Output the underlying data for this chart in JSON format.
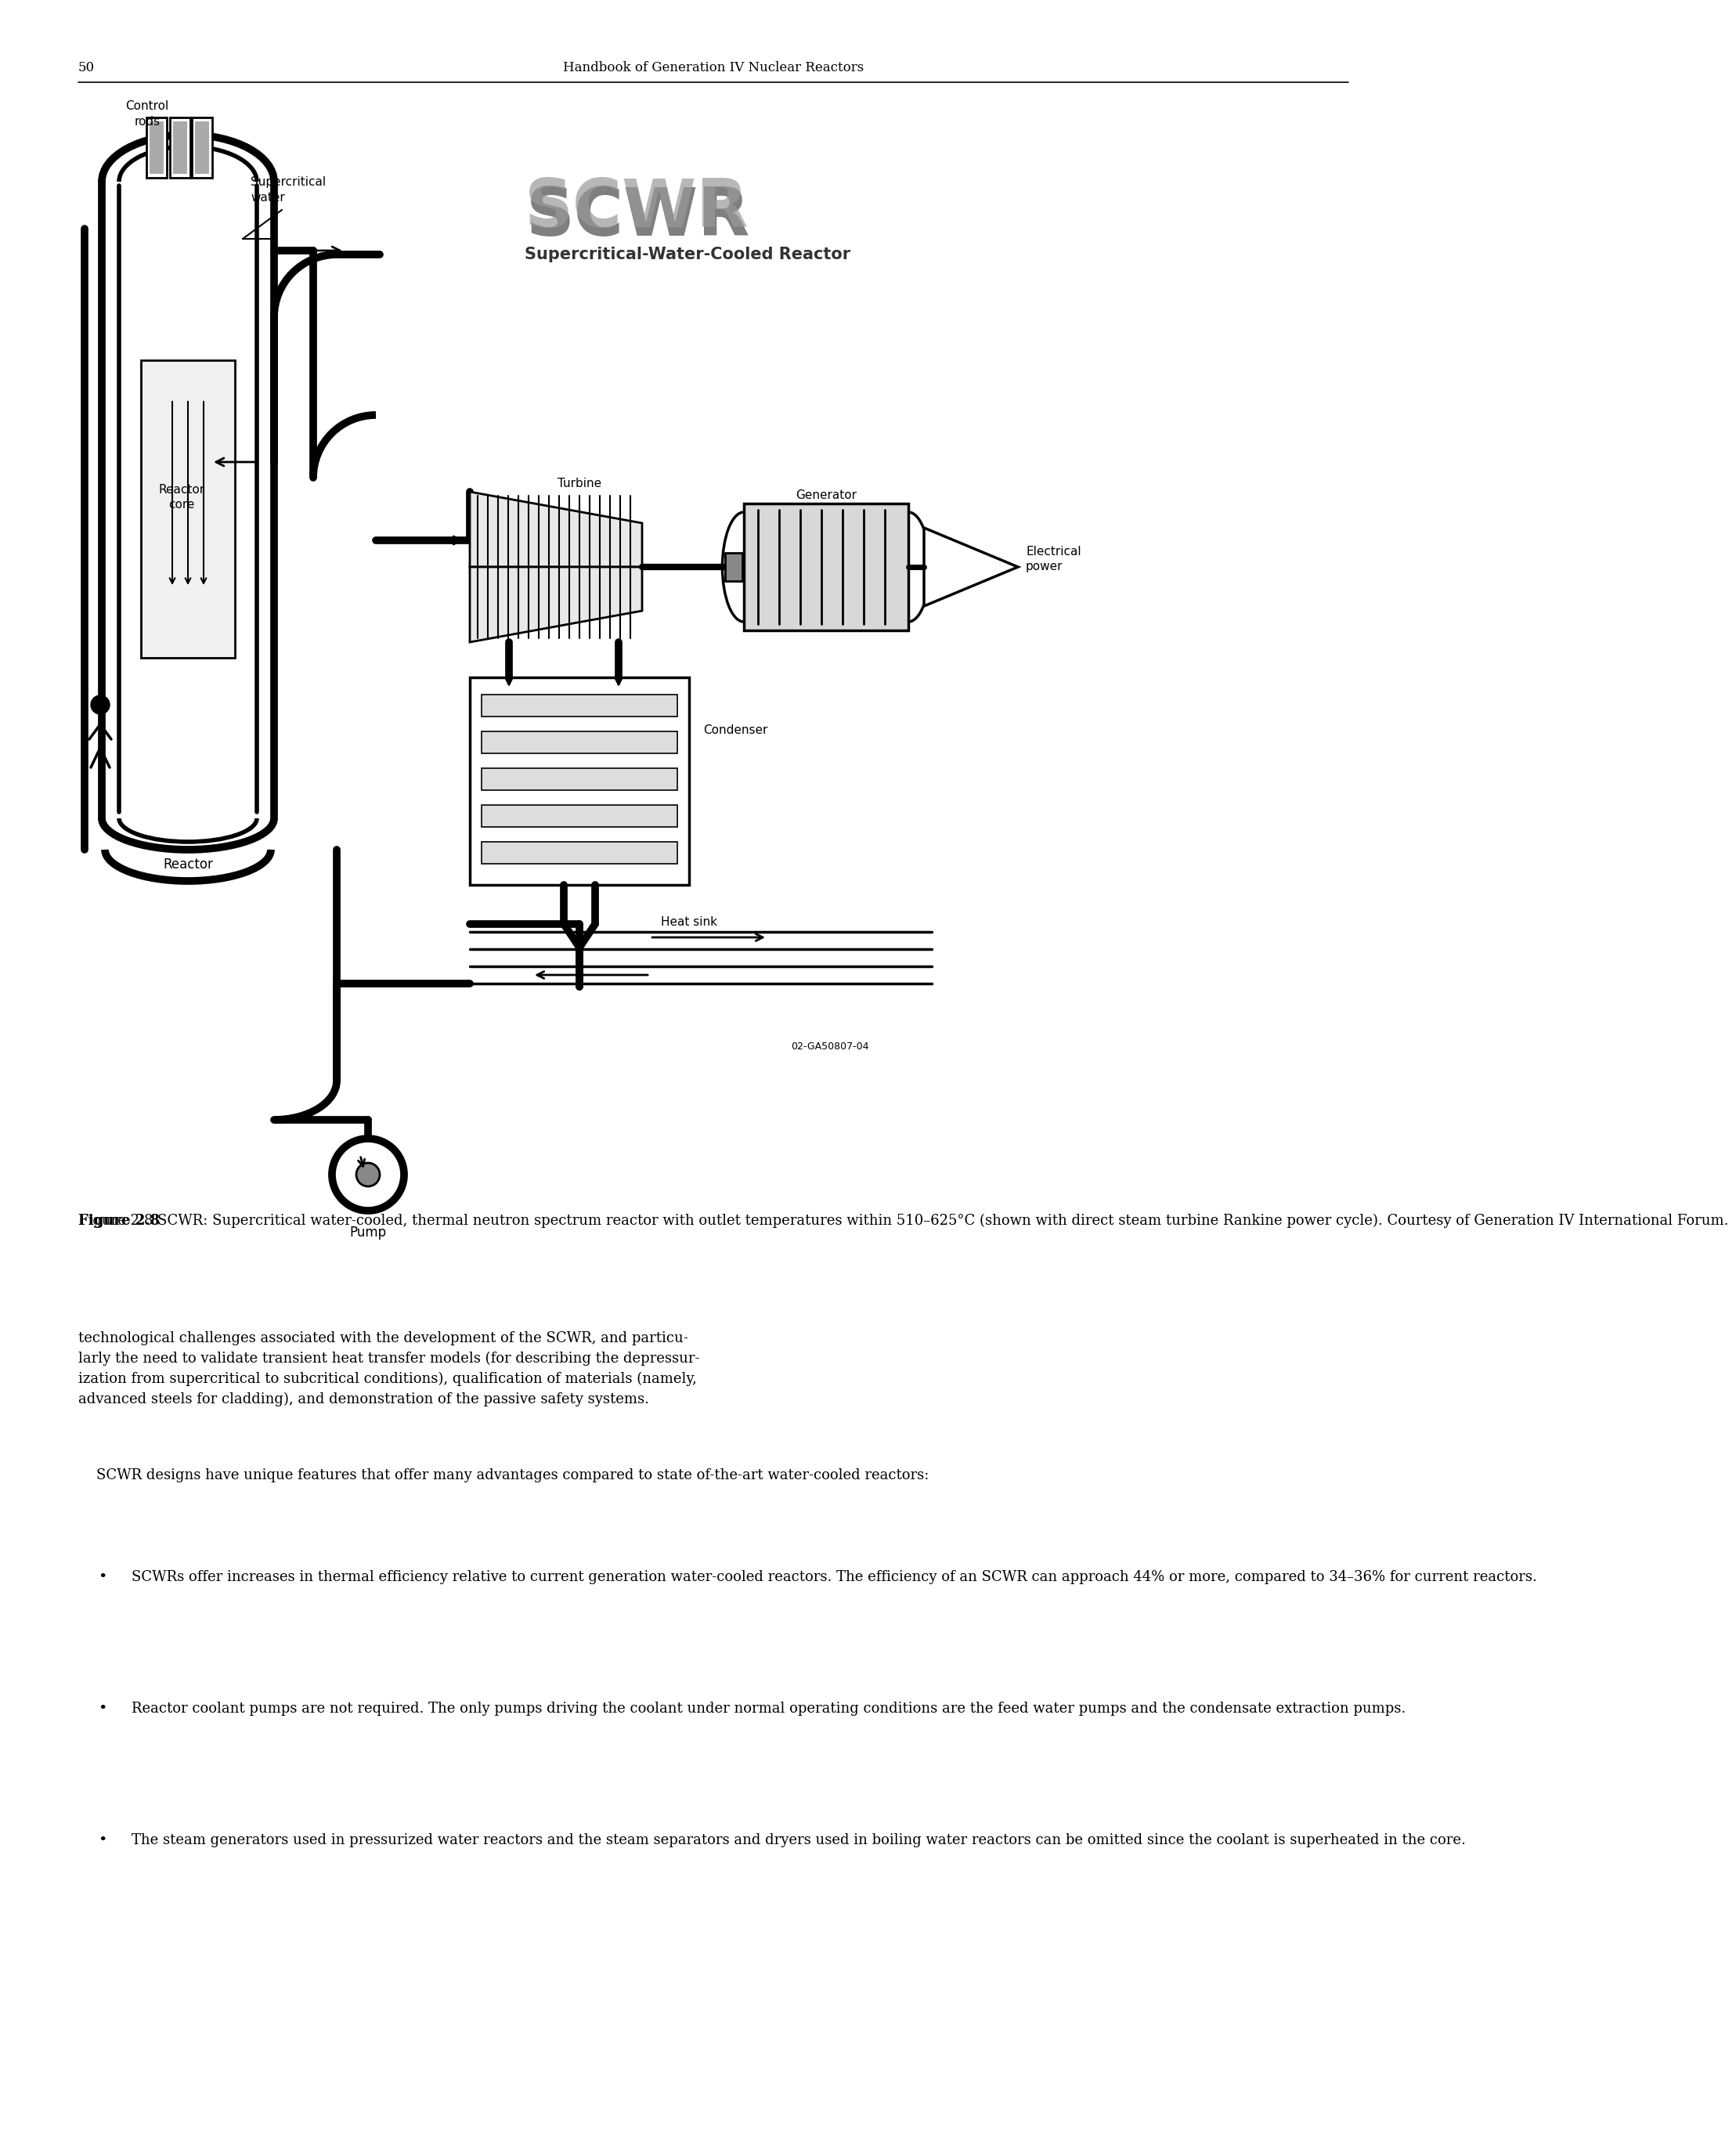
{
  "page_number": "50",
  "header_title": "Handbook of Generation IV Nuclear Reactors",
  "bg_color": "#ffffff",
  "fig_caption_bold": "Figure 2.8",
  "fig_caption_rest": " SCWR: Supercritical water-cooled, thermal neutron spectrum reactor with outlet temperatures within 510–625°C (shown with direct steam turbine Rankine power cycle). Courtesy of Generation IV International Forum.",
  "body_intro": "technological challenges associated with the development of the SCWR, and particu-\nlarly the need to validate transient heat transfer models (for describing the depressur-\nization from supercritical to subcritical conditions), qualification of materials (namely,\nadvanced steels for cladding), and demonstration of the passive safety systems.",
  "body_para2_indent": "    SCWR designs have unique features that offer many advantages compared to state of-the-art water-cooled reactors:",
  "bullet_1": "SCWRs offer increases in thermal efficiency relative to current generation water-cooled reactors. The efficiency of an SCWR can approach 44% or more, compared to 34–36% for current reactors.",
  "bullet_2": "Reactor coolant pumps are not required. The only pumps driving the coolant under normal operating conditions are the feed water pumps and the condensate extraction pumps.",
  "bullet_3": "The steam generators used in pressurized water reactors and the steam separators and dryers used in boiling water reactors can be omitted since the coolant is superheated in the core.",
  "diagram_ref": "02-GA50807-04",
  "scwr_logo": "SCWR",
  "scwr_subtitle": "Supercritical-Water-Cooled Reactor"
}
